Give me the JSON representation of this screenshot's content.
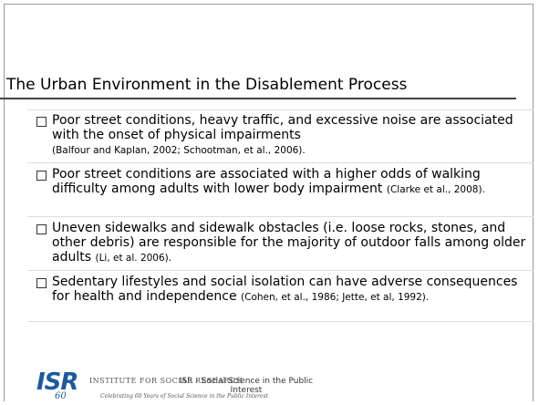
{
  "title": "The Urban Environment in the Disablement Process",
  "bullets": [
    {
      "text": "Poor street conditions, heavy traffic, and excessive noise are associated with the onset of physical impairments",
      "citation": "(Balfour and Kaplan, 2002; Schootman, et al., 2006)."
    },
    {
      "text": "Poor street conditions are associated with a higher odds of walking difficulty among adults with lower body impairment",
      "citation": "(Clarke et al., 2008)."
    },
    {
      "text": "Uneven sidewalks and sidewalk obstacles (i.e. loose rocks, stones, and other debris) are responsible for the majority of outdoor falls among older adults",
      "citation": "(Li, et al.  2006)."
    },
    {
      "text": "Sedentary lifestyles and social isolation can have adverse consequences for health and independence",
      "citation": "(Cohen, et al., 1986; Jette, et al, 1992)."
    }
  ],
  "footer": {
    "logo": "ISR",
    "logo_year": "60",
    "institute": "INSTITUTE FOR SOCIAL RESEARCH",
    "tagline": "Celebrating 60 Years of Social Science in the Public Interest",
    "overlay": "ISR - Social Science in the Public Interest"
  }
}
